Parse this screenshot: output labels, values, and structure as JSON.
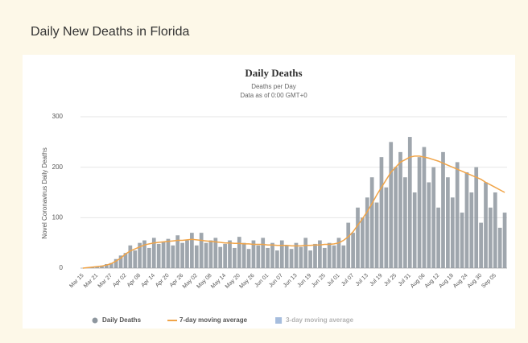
{
  "page_title": "Daily New Deaths in Florida",
  "chart_data": {
    "type": "bar",
    "title": "Daily Deaths",
    "subtitle": [
      "Deaths per Day",
      "Data as of 0:00 GMT+0"
    ],
    "y_label": "Novel Coronavirus Daily Deaths",
    "categories": [
      "Mar 15",
      null,
      null,
      "Mar 21",
      null,
      null,
      "Mar 27",
      null,
      null,
      "Apr 02",
      null,
      null,
      "Apr 08",
      null,
      null,
      "Apr 14",
      null,
      null,
      "Apr 20",
      null,
      null,
      "Apr 26",
      null,
      null,
      "May 02",
      null,
      null,
      "May 08",
      null,
      null,
      "May 14",
      null,
      null,
      "May 20",
      null,
      null,
      "May 26",
      null,
      null,
      "Jun 01",
      null,
      null,
      "Jun 07",
      null,
      null,
      "Jun 13",
      null,
      null,
      "Jun 19",
      null,
      null,
      "Jun 25",
      null,
      null,
      "Jul 01",
      null,
      null,
      "Jul 07",
      null,
      null,
      "Jul 13",
      null,
      null,
      "Jul 19",
      null,
      null,
      "Jul 25",
      null,
      null,
      "Jul 31",
      null,
      null,
      "Aug 06",
      null,
      null,
      "Aug 12",
      null,
      null,
      "Aug 18",
      null,
      null,
      "Aug 24",
      null,
      null,
      "Aug 30",
      null,
      null,
      "Sep 05",
      null,
      null
    ],
    "series": [
      {
        "name": "Daily Deaths",
        "type": "bar",
        "color": "#8e979f",
        "values": [
          0,
          1,
          2,
          3,
          5,
          8,
          10,
          18,
          25,
          30,
          45,
          35,
          50,
          55,
          40,
          60,
          48,
          52,
          58,
          45,
          65,
          50,
          55,
          70,
          45,
          70,
          50,
          55,
          60,
          42,
          48,
          55,
          40,
          62,
          50,
          38,
          55,
          45,
          60,
          40,
          50,
          35,
          55,
          45,
          38,
          50,
          42,
          60,
          35,
          48,
          55,
          40,
          50,
          45,
          60,
          45,
          90,
          70,
          120,
          100,
          140,
          180,
          130,
          220,
          160,
          250,
          200,
          230,
          180,
          260,
          150,
          220,
          240,
          170,
          200,
          120,
          230,
          180,
          140,
          210,
          110,
          190,
          150,
          200,
          90,
          170,
          120,
          150,
          80,
          110
        ]
      },
      {
        "name": "7-day moving average",
        "type": "line",
        "color": "#f0a448",
        "values": [
          0,
          1,
          2,
          3,
          4,
          6,
          9,
          14,
          20,
          28,
          34,
          38,
          42,
          46,
          48,
          50,
          51,
          52,
          53,
          54,
          55,
          55,
          56,
          57,
          56,
          55,
          54,
          53,
          52,
          51,
          50,
          50,
          49,
          49,
          48,
          48,
          47,
          47,
          47,
          46,
          46,
          45,
          45,
          45,
          44,
          44,
          44,
          45,
          45,
          46,
          46,
          47,
          47,
          48,
          50,
          55,
          62,
          72,
          85,
          98,
          112,
          128,
          145,
          160,
          175,
          190,
          200,
          210,
          215,
          220,
          222,
          222,
          220,
          218,
          215,
          212,
          208,
          204,
          200,
          196,
          192,
          188,
          184,
          180,
          176,
          170,
          165,
          160,
          155,
          150
        ]
      },
      {
        "name": "3-day moving average",
        "type": "line",
        "color": "#3b6fb6",
        "visible": false
      }
    ],
    "ylim": [
      0,
      300
    ],
    "yticks": [
      0,
      100,
      200,
      300
    ],
    "grid": true
  }
}
